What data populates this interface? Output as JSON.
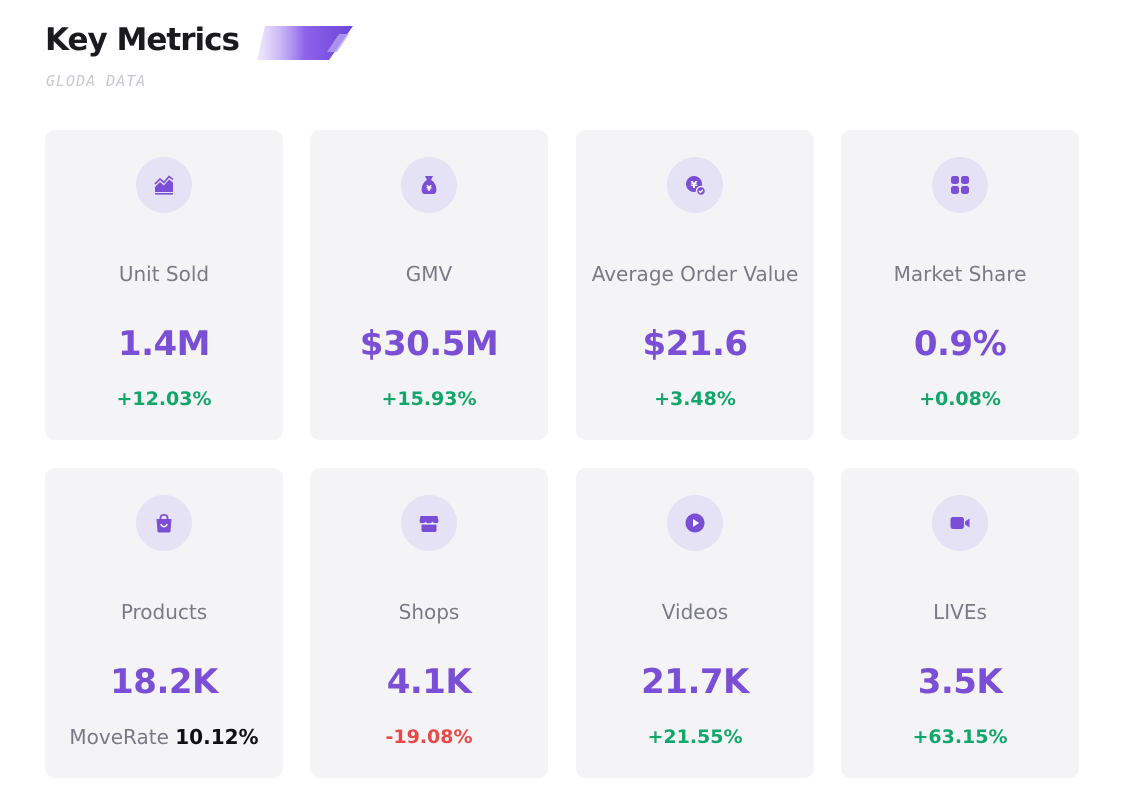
{
  "header": {
    "title": "Key Metrics",
    "subtitle": "GLODA DATA"
  },
  "colors": {
    "accent": "#7a4fd6",
    "positive": "#12a66b",
    "negative": "#e84848",
    "card_bg": "#f4f4f7",
    "icon_bg": "#e6e2f6"
  },
  "metrics": [
    {
      "icon": "trend-chart-icon",
      "label": "Unit Sold",
      "value": "1.4M",
      "change": "+12.03%"
    },
    {
      "icon": "money-bag-icon",
      "label": "GMV",
      "value": "$30.5M",
      "change": "+15.93%"
    },
    {
      "icon": "yen-coin-check-icon",
      "label": "Average Order Value",
      "value": "$21.6",
      "change": "+3.48%"
    },
    {
      "icon": "grid-icon",
      "label": "Market Share",
      "value": "0.9%",
      "change": "+0.08%"
    },
    {
      "icon": "shopping-bag-icon",
      "label": "Products",
      "value": "18.2K",
      "moverate_label": "MoveRate",
      "moverate_value": "10.12%"
    },
    {
      "icon": "store-icon",
      "label": "Shops",
      "value": "4.1K",
      "change": "-19.08%"
    },
    {
      "icon": "play-icon",
      "label": "Videos",
      "value": "21.7K",
      "change": "+21.55%"
    },
    {
      "icon": "video-camera-icon",
      "label": "LIVEs",
      "value": "3.5K",
      "change": "+63.15%"
    }
  ]
}
